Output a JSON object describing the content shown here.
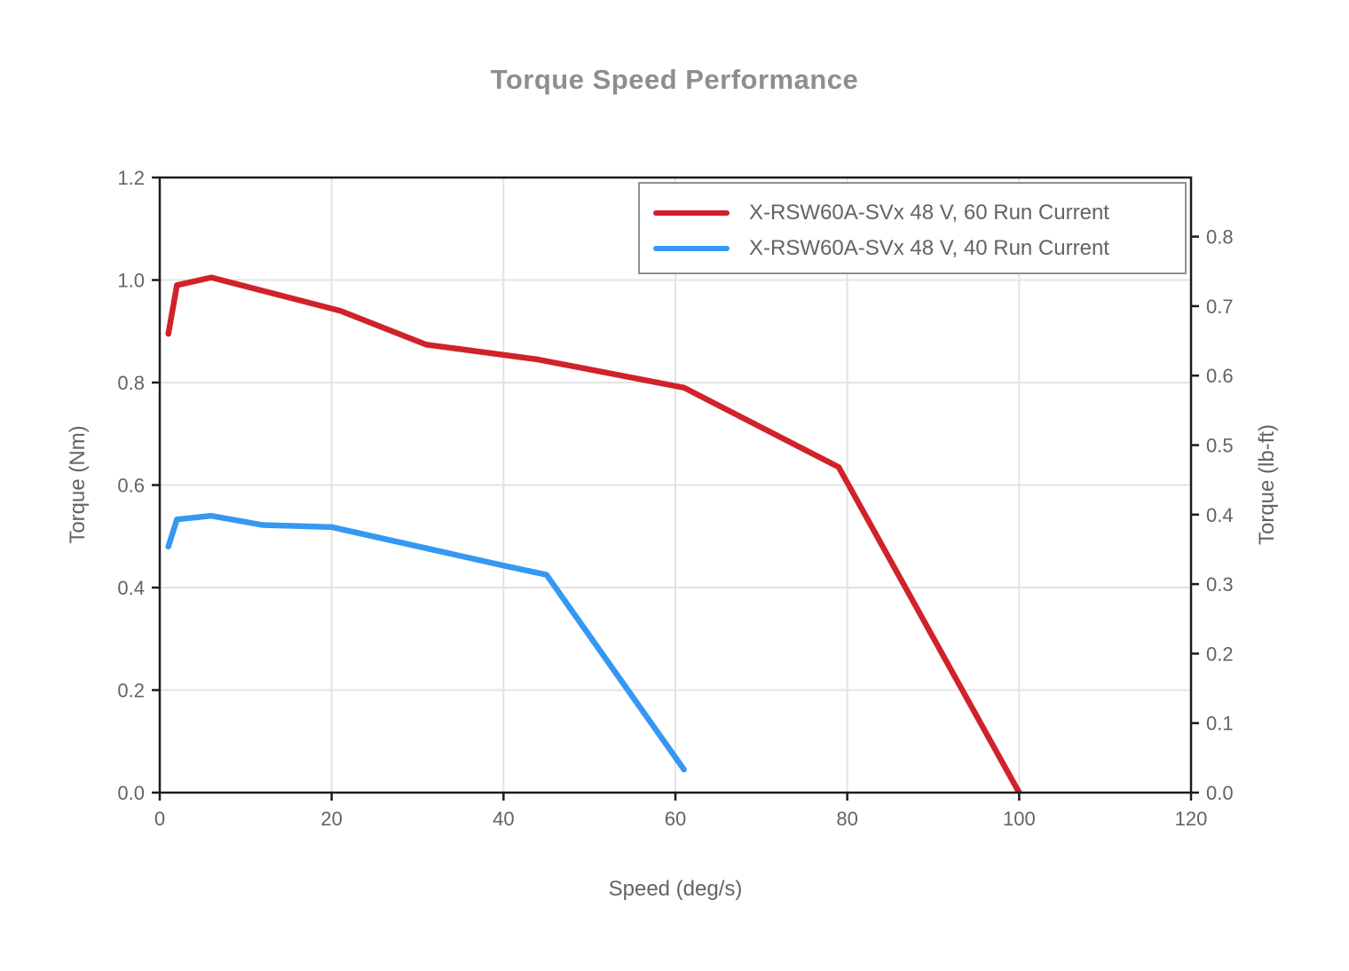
{
  "chart_data": {
    "type": "line",
    "title": "Torque Speed Performance",
    "xlabel": "Speed (deg/s)",
    "ylabel_left": "Torque (Nm)",
    "ylabel_right": "Torque (lb-ft)",
    "x_range": [
      0,
      120
    ],
    "y_left_range": [
      0.0,
      1.2
    ],
    "x_tick_values": [
      0,
      20,
      40,
      60,
      80,
      100,
      120
    ],
    "x_tick_labels": [
      "0",
      "20",
      "40",
      "60",
      "80",
      "100",
      "120"
    ],
    "y_left_tick_values": [
      0.0,
      0.2,
      0.4,
      0.6,
      0.8,
      1.0,
      1.2
    ],
    "y_left_tick_labels": [
      "0.0",
      "0.2",
      "0.4",
      "0.6",
      "0.8",
      "1.0",
      "1.2"
    ],
    "y_right_tick_values": [
      0.0,
      0.1,
      0.2,
      0.3,
      0.4,
      0.5,
      0.6,
      0.7,
      0.8
    ],
    "y_right_tick_labels": [
      "0.0",
      "0.1",
      "0.2",
      "0.3",
      "0.4",
      "0.5",
      "0.6",
      "0.7",
      "0.8"
    ],
    "lbft_per_nm": 0.7375621,
    "grid": true,
    "legend_position": "top-right",
    "series": [
      {
        "name": "X-RSW60A-SVx 48 V, 60 Run Current",
        "color": "#d0222a",
        "x": [
          1,
          2,
          6,
          21,
          31,
          44,
          61,
          79,
          100
        ],
        "y": [
          0.895,
          0.99,
          1.005,
          0.94,
          0.874,
          0.845,
          0.79,
          0.635,
          0.0
        ]
      },
      {
        "name": "X-RSW60A-SVx 48 V, 40 Run Current",
        "color": "#3598f2",
        "x": [
          1,
          2,
          6,
          12,
          20,
          40,
          45,
          61
        ],
        "y": [
          0.48,
          0.533,
          0.54,
          0.522,
          0.518,
          0.443,
          0.425,
          0.045
        ]
      }
    ],
    "styles": {
      "background_color": "#ffffff",
      "title_color": "#8e8e8e",
      "label_color": "#636363",
      "axis_color": "#1c1c1c",
      "grid_color": "#e3e3e3",
      "legend_border_color": "#8f8f8f"
    }
  }
}
